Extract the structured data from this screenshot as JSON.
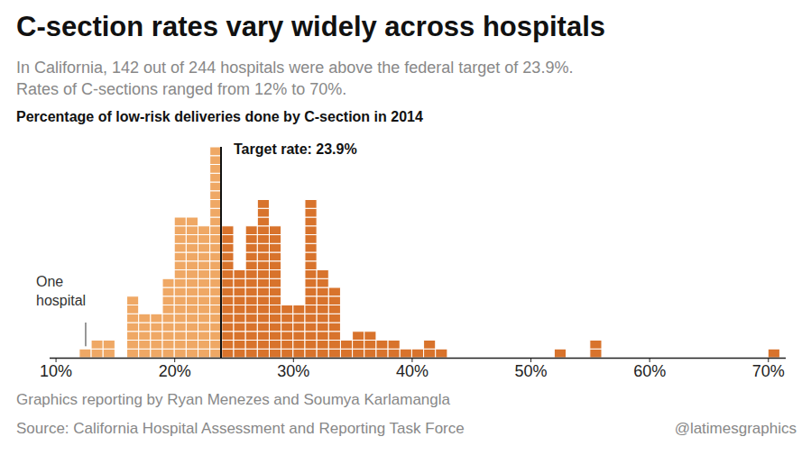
{
  "chart_data": {
    "type": "histogram",
    "title": "C-section rates vary widely across hospitals",
    "subtitle": "In California, 142 out of 244 hospitals were above the federal target of 23.9%.\nRates of C-sections ranged from 12% to 70%.",
    "chart_title": "Percentage of low-risk deliveries done by C-section in 2014",
    "credit": "Graphics reporting by Ryan Menezes and Soumya Karlamangla",
    "source": "Source: California Hospital Assessment and Reporting Task Force",
    "handle": "@latimesgraphics",
    "bins": [
      12,
      13,
      14,
      15,
      16,
      17,
      18,
      19,
      20,
      21,
      22,
      23,
      24,
      25,
      26,
      27,
      28,
      29,
      30,
      31,
      32,
      33,
      34,
      35,
      36,
      37,
      38,
      39,
      40,
      41,
      42,
      43,
      44,
      45,
      46,
      47,
      48,
      49,
      50,
      51,
      52,
      53,
      54,
      55,
      56,
      57,
      58,
      59,
      60,
      61,
      62,
      63,
      64,
      65,
      66,
      67,
      68,
      69,
      70,
      71
    ],
    "values": [
      1,
      2,
      2,
      0,
      7,
      5,
      5,
      9,
      16,
      16,
      15,
      24,
      15,
      10,
      15,
      18,
      15,
      6,
      6,
      18,
      10,
      8,
      2,
      3,
      3,
      2,
      2,
      1,
      1,
      2,
      1,
      0,
      0,
      0,
      0,
      0,
      0,
      0,
      0,
      0,
      1,
      0,
      0,
      2,
      0,
      0,
      0,
      0,
      0,
      0,
      0,
      0,
      0,
      0,
      0,
      0,
      0,
      0,
      1
    ],
    "colors": [
      "#efa865",
      "#efa865",
      "#efa865",
      "#efa865",
      "#efa865",
      "#efa865",
      "#efa865",
      "#efa865",
      "#efa865",
      "#efa865",
      "#efa865",
      "#efa865",
      "#d8732c",
      "#d8732c",
      "#d8732c",
      "#d8732c",
      "#d8732c",
      "#d8732c",
      "#d8732c",
      "#d8732c",
      "#d8732c",
      "#d8732c",
      "#d8732c",
      "#d8732c",
      "#d8732c",
      "#d8732c",
      "#d8732c",
      "#d8732c",
      "#d8732c",
      "#d8732c",
      "#d8732c",
      "#d8732c",
      "#d8732c",
      "#d8732c",
      "#d8732c",
      "#d8732c",
      "#d8732c",
      "#d8732c",
      "#d8732c",
      "#d8732c",
      "#d8732c",
      "#d8732c",
      "#d8732c",
      "#d8732c",
      "#d8732c",
      "#d8732c",
      "#d8732c",
      "#d8732c",
      "#d8732c",
      "#d8732c",
      "#d8732c",
      "#d8732c",
      "#d8732c",
      "#d8732c",
      "#d8732c",
      "#d8732c",
      "#d8732c",
      "#d8732c",
      "#d8732c"
    ],
    "xlim": [
      9.5,
      71.5
    ],
    "xticks": [
      {
        "value": 10,
        "label": "10%"
      },
      {
        "value": 20,
        "label": "20%"
      },
      {
        "value": 30,
        "label": "30%"
      },
      {
        "value": 40,
        "label": "40%"
      },
      {
        "value": 50,
        "label": "50%"
      },
      {
        "value": 60,
        "label": "60%"
      },
      {
        "value": 70,
        "label": "70%"
      }
    ],
    "ylim": [
      0,
      24
    ],
    "tick_labels": "x",
    "grid": false,
    "annotations": [
      {
        "text": "Target rate: 23.9%",
        "x": 23.9
      },
      {
        "text": "One\nhospital",
        "x": 12.5
      }
    ]
  }
}
